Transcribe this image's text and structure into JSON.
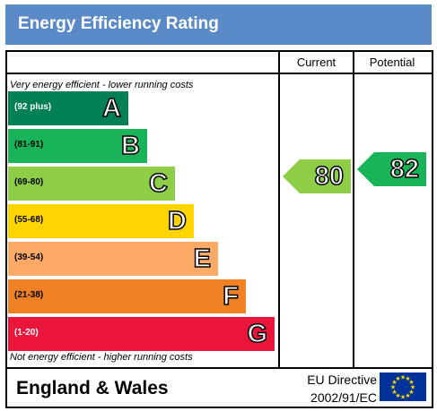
{
  "header": {
    "title": "Energy Efficiency Rating"
  },
  "columns": {
    "current": "Current",
    "potential": "Potential"
  },
  "notes": {
    "top": "Very energy efficient - lower running costs",
    "bottom": "Not energy efficient - higher running costs"
  },
  "footer": {
    "region": "England & Wales",
    "directive_line1": "EU Directive",
    "directive_line2": "2002/91/EC"
  },
  "chart_data": {
    "type": "bar",
    "title": "Energy Efficiency Rating",
    "bands": [
      {
        "letter": "A",
        "range": "(92 plus)",
        "min": 92,
        "max": 100,
        "color": "#008054"
      },
      {
        "letter": "B",
        "range": "(81-91)",
        "min": 81,
        "max": 91,
        "color": "#19b459"
      },
      {
        "letter": "C",
        "range": "(69-80)",
        "min": 69,
        "max": 80,
        "color": "#8dce46"
      },
      {
        "letter": "D",
        "range": "(55-68)",
        "min": 55,
        "max": 68,
        "color": "#ffd500"
      },
      {
        "letter": "E",
        "range": "(39-54)",
        "min": 39,
        "max": 54,
        "color": "#fcaa65"
      },
      {
        "letter": "F",
        "range": "(21-38)",
        "min": 21,
        "max": 38,
        "color": "#ef8023"
      },
      {
        "letter": "G",
        "range": "(1-20)",
        "min": 1,
        "max": 20,
        "color": "#e9153b"
      }
    ],
    "current": {
      "value": 80,
      "band": "C",
      "color": "#8dce46"
    },
    "potential": {
      "value": 82,
      "band": "B",
      "color": "#19b459"
    }
  }
}
